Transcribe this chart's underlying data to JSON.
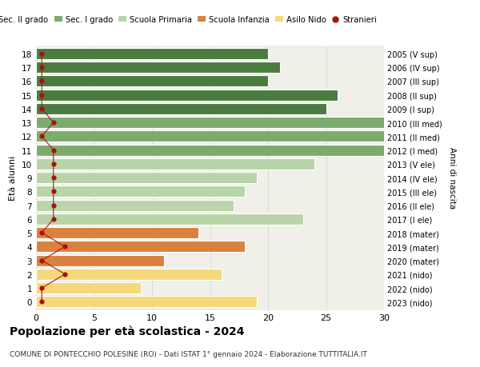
{
  "ages": [
    18,
    17,
    16,
    15,
    14,
    13,
    12,
    11,
    10,
    9,
    8,
    7,
    6,
    5,
    4,
    3,
    2,
    1,
    0
  ],
  "right_labels": [
    "2005 (V sup)",
    "2006 (IV sup)",
    "2007 (III sup)",
    "2008 (II sup)",
    "2009 (I sup)",
    "2010 (III med)",
    "2011 (II med)",
    "2012 (I med)",
    "2013 (V ele)",
    "2014 (IV ele)",
    "2015 (III ele)",
    "2016 (II ele)",
    "2017 (I ele)",
    "2018 (mater)",
    "2019 (mater)",
    "2020 (mater)",
    "2021 (nido)",
    "2022 (nido)",
    "2023 (nido)"
  ],
  "bar_values": [
    20,
    21,
    20,
    26,
    25,
    33,
    32,
    33,
    24,
    19,
    18,
    17,
    23,
    14,
    18,
    11,
    16,
    9,
    19
  ],
  "bar_colors": [
    "#4a7c3f",
    "#4a7c3f",
    "#4a7c3f",
    "#4a7c3f",
    "#4a7c3f",
    "#7dab6e",
    "#7dab6e",
    "#7dab6e",
    "#b8d4a8",
    "#b8d4a8",
    "#b8d4a8",
    "#b8d4a8",
    "#b8d4a8",
    "#d9813e",
    "#d9813e",
    "#d9813e",
    "#f5d87a",
    "#f5d87a",
    "#f5d87a"
  ],
  "stranieri_x": [
    0.5,
    0.5,
    0.5,
    0.5,
    0.5,
    1.5,
    0.5,
    1.5,
    1.5,
    1.5,
    1.5,
    1.5,
    1.5,
    0.5,
    2.5,
    0.5,
    2.5,
    0.5,
    0.5
  ],
  "title": "Popolazione per à scolastica - 2024",
  "title_bold": "Popolazione per età scolastica - 2024",
  "subtitle": "COMUNE DI PONTECCHIO POLESINE (RO) - Dati ISTAT 1° gennaio 2024 - Elaborazione TUTTITALIA.IT",
  "ylabel_left": "Età alunni",
  "ylabel_right": "Anni di nascita",
  "legend_labels": [
    "Sec. II grado",
    "Sec. I grado",
    "Scuola Primaria",
    "Scuola Infanzia",
    "Asilo Nido",
    "Stranieri"
  ],
  "legend_colors": [
    "#4a7c3f",
    "#7dab6e",
    "#b8d4a8",
    "#d9813e",
    "#f5d87a",
    "#aa1111"
  ],
  "bg_color": "#ffffff",
  "plot_bg": "#f0f0e8",
  "xlim": [
    0,
    30
  ],
  "bar_height": 0.82
}
